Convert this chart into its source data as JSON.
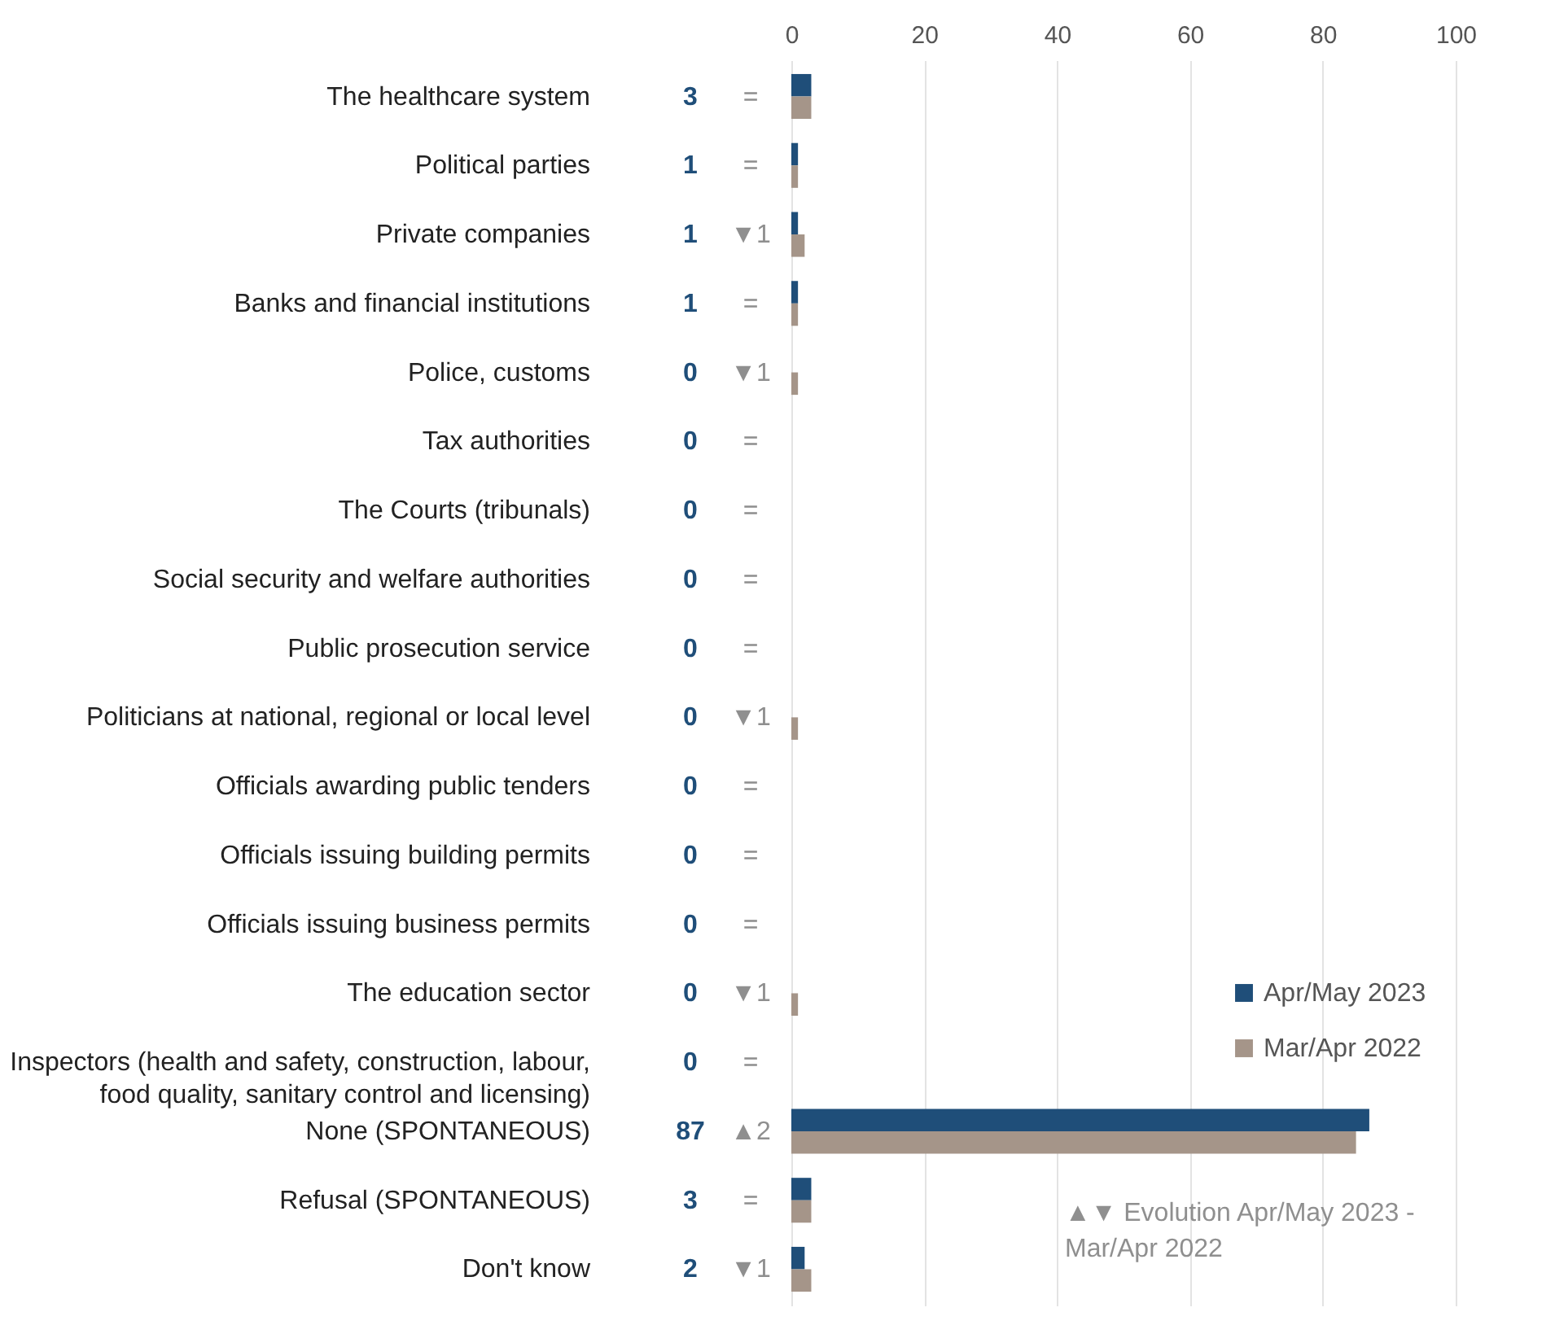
{
  "chart_data": {
    "type": "bar",
    "orientation": "horizontal",
    "categories": [
      "The healthcare system",
      "Political parties",
      "Private companies",
      "Banks and financial institutions",
      "Police, customs",
      "Tax authorities",
      "The Courts (tribunals)",
      "Social security and welfare authorities",
      "Public prosecution service",
      "Politicians at national, regional or local level",
      "Officials awarding public tenders",
      "Officials issuing building permits",
      "Officials issuing business permits",
      "The education sector",
      "Inspectors (health and safety, construction, labour, food quality, sanitary control and licensing)",
      "None (SPONTANEOUS)",
      "Refusal (SPONTANEOUS)",
      "Don't know"
    ],
    "series": [
      {
        "name": "Apr/May 2023",
        "color": "#1f4e79",
        "values": [
          3,
          1,
          1,
          1,
          0,
          0,
          0,
          0,
          0,
          0,
          0,
          0,
          0,
          0,
          0,
          87,
          3,
          2
        ],
        "value_labels": [
          "3",
          "1",
          "1",
          "1",
          "0",
          "0",
          "0",
          "0",
          "0",
          "0",
          "0",
          "0",
          "0",
          "0",
          "0",
          "87",
          "3",
          "2"
        ]
      },
      {
        "name": "Mar/Apr 2022",
        "color": "#a59589",
        "values": [
          3,
          1,
          2,
          1,
          1,
          0,
          0,
          0,
          0,
          1,
          0,
          0,
          0,
          1,
          0,
          85,
          3,
          3
        ]
      }
    ],
    "x2lim": [
      0,
      100
    ],
    "x2ticks": [
      0,
      20,
      40,
      60,
      80,
      100
    ],
    "grid": "x",
    "legend": "bottom right",
    "annotations": [
      "=",
      "=",
      "▼1",
      "=",
      "▼1",
      "=",
      "=",
      "=",
      "=",
      "▼1",
      "=",
      "=",
      "=",
      "▼1",
      "=",
      "▲2",
      "=",
      "▼1",
      "▲▼ Evolution Apr/May 2023 - Mar/Apr 2022"
    ]
  }
}
